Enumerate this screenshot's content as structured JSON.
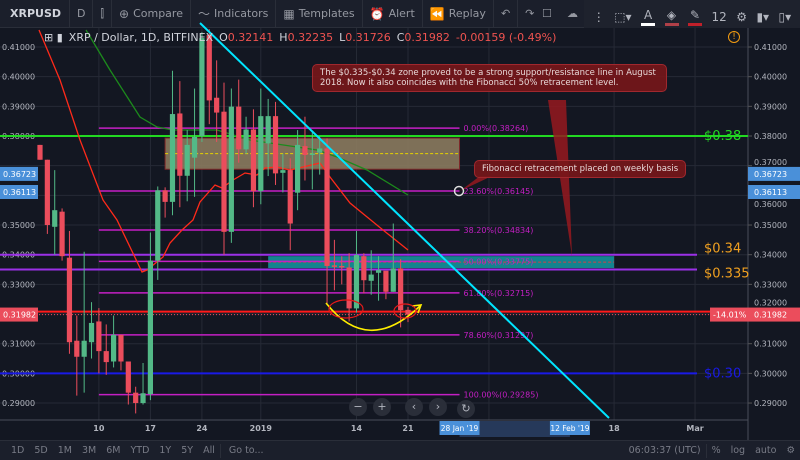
{
  "toolbar": {
    "symbol": "XRPUSD",
    "interval": "D",
    "compare": "Compare",
    "indicators": "Indicators",
    "templates": "Templates",
    "alert": "Alert",
    "replay": "Replay",
    "font_size": "12"
  },
  "legend": {
    "title": "XRP / Dollar, 1D, BITFINEX",
    "o_label": "O",
    "o": "0.32141",
    "h_label": "H",
    "h": "0.32235",
    "l_label": "L",
    "l": "0.31726",
    "c_label": "C",
    "c": "0.31982",
    "change": "-0.00159 (-0.49%)"
  },
  "annotations": {
    "callout_main": "The $0.335-$0.34 zone proved to be a strong support/resistance line in August 2018. Now it also coincides with the Fibonacci 50% retracement level.",
    "callout_fib": "Fibonacci retracement placed on weekly basis"
  },
  "colors": {
    "up": "#53b987",
    "down": "#eb4d5c",
    "trendline": "#00e5ff",
    "fib": "#c41fc4",
    "background": "#131722"
  },
  "chart_data": {
    "type": "candlestick",
    "ylim": [
      0.285,
      0.416
    ],
    "y_ticks": [
      "0.41000",
      "0.40000",
      "0.39000",
      "0.38000",
      "0.37000",
      "0.36000",
      "0.35000",
      "0.34000",
      "0.33000",
      "0.32000",
      "0.31000",
      "0.30000",
      "0.29000"
    ],
    "x_ticks": [
      {
        "date": "2018-12-10",
        "label": "10"
      },
      {
        "date": "2018-12-17",
        "label": "17"
      },
      {
        "date": "2018-12-24",
        "label": "24"
      },
      {
        "date": "2019-01-01",
        "label": "2019"
      },
      {
        "date": "2019-01-14",
        "label": "14"
      },
      {
        "date": "2019-01-21",
        "label": "21"
      },
      {
        "date": "2019-02-01",
        "label": "Feb"
      },
      {
        "date": "2019-02-18",
        "label": "18"
      },
      {
        "date": "2019-03-01",
        "label": "Mar"
      }
    ],
    "x_highlight": [
      {
        "date": "2019-01-28",
        "label": "28 Jan '19"
      },
      {
        "date": "2019-02-12",
        "label": "12 Feb '19"
      }
    ],
    "grid": true,
    "candles": [
      [
        "2018-12-02",
        0.377,
        0.377,
        0.372,
        0.372
      ],
      [
        "2018-12-03",
        0.372,
        0.372,
        0.347,
        0.35
      ],
      [
        "2018-12-04",
        0.3494,
        0.3685,
        0.34,
        0.355
      ],
      [
        "2018-12-05",
        0.3545,
        0.3556,
        0.338,
        0.3395
      ],
      [
        "2018-12-06",
        0.339,
        0.348,
        0.3066,
        0.3105
      ],
      [
        "2018-12-07",
        0.311,
        0.3195,
        0.2925,
        0.3056
      ],
      [
        "2018-12-08",
        0.3056,
        0.341,
        0.2935,
        0.311
      ],
      [
        "2018-12-09",
        0.3105,
        0.324,
        0.305,
        0.317
      ],
      [
        "2018-12-10",
        0.3175,
        0.322,
        0.3,
        0.3075
      ],
      [
        "2018-12-11",
        0.3075,
        0.3165,
        0.2995,
        0.3038
      ],
      [
        "2018-12-12",
        0.304,
        0.3195,
        0.302,
        0.313
      ],
      [
        "2018-12-13",
        0.313,
        0.313,
        0.301,
        0.304
      ],
      [
        "2018-12-14",
        0.304,
        0.304,
        0.2895,
        0.2935
      ],
      [
        "2018-12-15",
        0.2935,
        0.2955,
        0.2865,
        0.29
      ],
      [
        "2018-12-16",
        0.29,
        0.3035,
        0.2895,
        0.2933
      ],
      [
        "2018-12-17",
        0.293,
        0.3475,
        0.291,
        0.338
      ],
      [
        "2018-12-18",
        0.338,
        0.363,
        0.3315,
        0.3617
      ],
      [
        "2018-12-19",
        0.3617,
        0.3627,
        0.3525,
        0.3578
      ],
      [
        "2018-12-20",
        0.3578,
        0.402,
        0.3533,
        0.3874
      ],
      [
        "2018-12-21",
        0.3876,
        0.3985,
        0.356,
        0.3666
      ],
      [
        "2018-12-22",
        0.3666,
        0.382,
        0.358,
        0.377
      ],
      [
        "2018-12-23",
        0.3727,
        0.396,
        0.3595,
        0.3797
      ],
      [
        "2018-12-24",
        0.38,
        0.415,
        0.378,
        0.413
      ],
      [
        "2018-12-25",
        0.414,
        0.416,
        0.384,
        0.392
      ],
      [
        "2018-12-26",
        0.3929,
        0.4055,
        0.378,
        0.3879
      ],
      [
        "2018-12-27",
        0.3882,
        0.398,
        0.34,
        0.3477
      ],
      [
        "2018-12-28",
        0.3477,
        0.396,
        0.344,
        0.3899
      ],
      [
        "2018-12-29",
        0.3899,
        0.399,
        0.371,
        0.3755
      ],
      [
        "2018-12-30",
        0.3755,
        0.3865,
        0.374,
        0.3822
      ],
      [
        "2018-12-31",
        0.3822,
        0.389,
        0.356,
        0.3614
      ],
      [
        "2019-01-01",
        0.3614,
        0.396,
        0.357,
        0.3867
      ],
      [
        "2019-01-02",
        0.3775,
        0.3925,
        0.3665,
        0.3867
      ],
      [
        "2019-01-03",
        0.3867,
        0.3915,
        0.3635,
        0.3674
      ],
      [
        "2019-01-04",
        0.3676,
        0.374,
        0.361,
        0.3685
      ],
      [
        "2019-01-05",
        0.3685,
        0.3725,
        0.3415,
        0.3505
      ],
      [
        "2019-01-06",
        0.3609,
        0.382,
        0.355,
        0.377
      ],
      [
        "2019-01-07",
        0.3766,
        0.3865,
        0.365,
        0.3736
      ],
      [
        "2019-01-08",
        0.3736,
        0.3815,
        0.362,
        0.3741
      ],
      [
        "2019-01-09",
        0.3744,
        0.38,
        0.367,
        0.3758
      ],
      [
        "2019-01-10",
        0.3758,
        0.3792,
        0.323,
        0.3362
      ],
      [
        "2019-01-11",
        0.3364,
        0.345,
        0.328,
        0.3359
      ],
      [
        "2019-01-12",
        0.3362,
        0.3395,
        0.33,
        0.3357
      ],
      [
        "2019-01-13",
        0.3357,
        0.3405,
        0.3175,
        0.3219
      ],
      [
        "2019-01-14",
        0.3219,
        0.348,
        0.3205,
        0.3399
      ],
      [
        "2019-01-15",
        0.3395,
        0.3405,
        0.327,
        0.3314
      ],
      [
        "2019-01-16",
        0.3312,
        0.3415,
        0.3265,
        0.3333
      ],
      [
        "2019-01-17",
        0.3339,
        0.3395,
        0.3245,
        0.3348
      ],
      [
        "2019-01-18",
        0.3346,
        0.3345,
        0.325,
        0.3275
      ],
      [
        "2019-01-19",
        0.3275,
        0.3505,
        0.3275,
        0.3354
      ],
      [
        "2019-01-20",
        0.3354,
        0.3385,
        0.3155,
        0.3213
      ],
      [
        "2019-01-21",
        0.32141,
        0.32235,
        0.31726,
        0.31982
      ]
    ],
    "horizontal_levels": [
      {
        "price": 0.38,
        "label": "$0.38",
        "color": "#22d922"
      },
      {
        "price": 0.34,
        "label": "$0.34",
        "color": "#f0a020",
        "line": "#9b30e8"
      },
      {
        "price": 0.335,
        "label": "$0.335",
        "color": "#f0a020",
        "line": "#9b30e8"
      },
      {
        "price": 0.3,
        "label": "$0.30",
        "color": "#1a1ae6"
      }
    ],
    "fibonacci": {
      "start": "2018-12-10",
      "end": "2019-01-28",
      "levels": [
        {
          "price": 0.38264,
          "label": "0.00%(0.38264)"
        },
        {
          "price": 0.36145,
          "label": "23.60%(0.36145)"
        },
        {
          "price": 0.34834,
          "label": "38.20%(0.34834)"
        },
        {
          "price": 0.33775,
          "label": "50.00%(0.33775)"
        },
        {
          "price": 0.32715,
          "label": "61.80%(0.32715)"
        },
        {
          "price": 0.31297,
          "label": "78.60%(0.31297)"
        },
        {
          "price": 0.29285,
          "label": "100.00%(0.29285)"
        }
      ]
    },
    "zones": [
      {
        "from": "2018-12-19",
        "to": "2019-01-28",
        "low": 0.3688,
        "high": 0.3793,
        "color": "#8a7a5e"
      },
      {
        "from": "2019-01-02",
        "to": "2019-02-18",
        "low": 0.3355,
        "high": 0.3395,
        "color": "#14909a"
      }
    ],
    "price_badges": [
      {
        "price": 0.36723,
        "label": "0.36723",
        "color": "#4a90d9"
      },
      {
        "price": 0.36113,
        "label": "0.36113",
        "color": "#4a90d9"
      },
      {
        "price": 0.31982,
        "label": "0.31982",
        "color": "#eb4d5c"
      }
    ],
    "percent_badge": "-14.01%",
    "support_line_price": 0.3208
  },
  "range_buttons": [
    "1D",
    "5D",
    "1M",
    "3M",
    "6M",
    "YTD",
    "1Y",
    "5Y",
    "All"
  ],
  "goto": "Go to...",
  "clock": "06:03:37 (UTC)",
  "scale_options": [
    "%",
    "log",
    "auto"
  ]
}
